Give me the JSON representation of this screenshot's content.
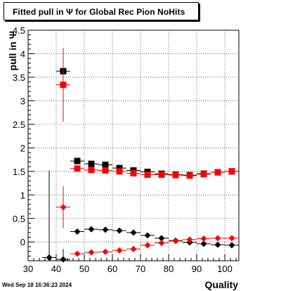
{
  "chart_data": {
    "type": "scatter",
    "title": "Fitted pull in  Ψ  for Global Rec Pion NoHits",
    "xlabel": "Quality",
    "ylabel": "pull in  Ψ",
    "xlim": [
      30,
      105
    ],
    "ylim": [
      -0.4,
      4.5
    ],
    "x_ticks": [
      "30",
      "40",
      "50",
      "60",
      "70",
      "80",
      "90",
      "100"
    ],
    "y_ticks": [
      "0",
      "0.5",
      "1",
      "1.5",
      "2",
      "2.5",
      "3",
      "3.5",
      "4",
      "4.5"
    ],
    "grid": true,
    "series": [
      {
        "marker": "square",
        "color": "#000000",
        "points": [
          {
            "x": 42.5,
            "y": 3.63,
            "yerr": 0.0
          },
          {
            "x": 47.5,
            "y": 1.72,
            "yerr": 0.0
          },
          {
            "x": 52.5,
            "y": 1.66,
            "yerr": 0.0
          },
          {
            "x": 57.5,
            "y": 1.64,
            "yerr": 0.0
          },
          {
            "x": 62.5,
            "y": 1.57,
            "yerr": 0.0
          },
          {
            "x": 67.5,
            "y": 1.52,
            "yerr": 0.0
          },
          {
            "x": 72.5,
            "y": 1.49,
            "yerr": 0.0
          },
          {
            "x": 77.5,
            "y": 1.45,
            "yerr": 0.0
          },
          {
            "x": 82.5,
            "y": 1.43,
            "yerr": 0.0
          },
          {
            "x": 87.5,
            "y": 1.42,
            "yerr": 0.0
          },
          {
            "x": 92.5,
            "y": 1.45,
            "yerr": 0.0
          },
          {
            "x": 97.5,
            "y": 1.48,
            "yerr": 0.0
          },
          {
            "x": 102.5,
            "y": 1.5,
            "yerr": 0.0
          }
        ]
      },
      {
        "marker": "square",
        "color": "#ff0000",
        "points": [
          {
            "x": 42.5,
            "y": 3.34,
            "yerr": 0.78
          },
          {
            "x": 47.5,
            "y": 1.56,
            "yerr": 0.0
          },
          {
            "x": 52.5,
            "y": 1.53,
            "yerr": 0.0
          },
          {
            "x": 57.5,
            "y": 1.52,
            "yerr": 0.0
          },
          {
            "x": 62.5,
            "y": 1.5,
            "yerr": 0.0
          },
          {
            "x": 67.5,
            "y": 1.46,
            "yerr": 0.0
          },
          {
            "x": 72.5,
            "y": 1.43,
            "yerr": 0.0
          },
          {
            "x": 77.5,
            "y": 1.43,
            "yerr": 0.0
          },
          {
            "x": 82.5,
            "y": 1.42,
            "yerr": 0.0
          },
          {
            "x": 87.5,
            "y": 1.41,
            "yerr": 0.0
          },
          {
            "x": 92.5,
            "y": 1.44,
            "yerr": 0.0
          },
          {
            "x": 97.5,
            "y": 1.48,
            "yerr": 0.0
          },
          {
            "x": 102.5,
            "y": 1.5,
            "yerr": 0.0
          }
        ]
      },
      {
        "marker": "diamond",
        "color": "#000000",
        "points": [
          {
            "x": 37.5,
            "y": -0.33,
            "yerr": 1.85
          },
          {
            "x": 42.5,
            "y": -0.37,
            "yerr": 0.22
          },
          {
            "x": 47.5,
            "y": 0.22,
            "yerr": 0.0
          },
          {
            "x": 52.5,
            "y": 0.27,
            "yerr": 0.0
          },
          {
            "x": 57.5,
            "y": 0.26,
            "yerr": 0.0
          },
          {
            "x": 62.5,
            "y": 0.24,
            "yerr": 0.0
          },
          {
            "x": 67.5,
            "y": 0.2,
            "yerr": 0.0
          },
          {
            "x": 72.5,
            "y": 0.14,
            "yerr": 0.0
          },
          {
            "x": 77.5,
            "y": 0.08,
            "yerr": 0.0
          },
          {
            "x": 82.5,
            "y": 0.03,
            "yerr": 0.0
          },
          {
            "x": 87.5,
            "y": -0.01,
            "yerr": 0.0
          },
          {
            "x": 92.5,
            "y": -0.04,
            "yerr": 0.0
          },
          {
            "x": 97.5,
            "y": -0.06,
            "yerr": 0.0
          },
          {
            "x": 102.5,
            "y": -0.07,
            "yerr": 0.0
          }
        ]
      },
      {
        "marker": "diamond",
        "color": "#ff0000",
        "points": [
          {
            "x": 42.5,
            "y": 0.74,
            "yerr": 0.45
          },
          {
            "x": 47.5,
            "y": -0.25,
            "yerr": 0.0
          },
          {
            "x": 52.5,
            "y": -0.22,
            "yerr": 0.0
          },
          {
            "x": 57.5,
            "y": -0.21,
            "yerr": 0.0
          },
          {
            "x": 62.5,
            "y": -0.18,
            "yerr": 0.0
          },
          {
            "x": 67.5,
            "y": -0.15,
            "yerr": 0.0
          },
          {
            "x": 72.5,
            "y": -0.07,
            "yerr": 0.0
          },
          {
            "x": 77.5,
            "y": -0.02,
            "yerr": 0.0
          },
          {
            "x": 82.5,
            "y": 0.02,
            "yerr": 0.0
          },
          {
            "x": 87.5,
            "y": 0.05,
            "yerr": 0.0
          },
          {
            "x": 92.5,
            "y": 0.07,
            "yerr": 0.0
          },
          {
            "x": 97.5,
            "y": 0.08,
            "yerr": 0.0
          },
          {
            "x": 102.5,
            "y": 0.08,
            "yerr": 0.0
          }
        ]
      }
    ]
  },
  "footer": {
    "timestamp": "Wed Sep 18 16:36:23 2024"
  }
}
